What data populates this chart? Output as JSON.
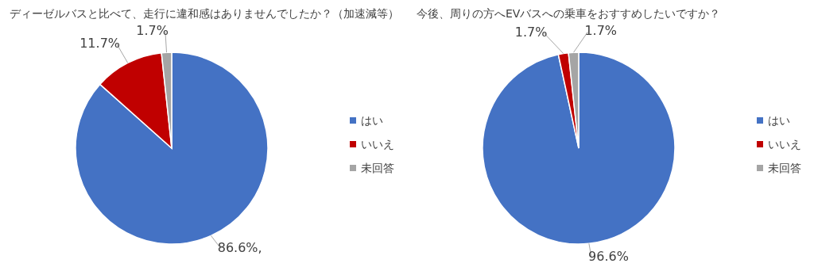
{
  "chart_data": [
    {
      "type": "pie",
      "title": "ディーゼルバスと比べて、走行に違和感はありませんでしたか？（加速減等）",
      "categories": [
        "はい",
        "いいえ",
        "未回答"
      ],
      "values": [
        86.6,
        11.7,
        1.7
      ],
      "colors": [
        "#4472c4",
        "#c00000",
        "#a5a5a5"
      ],
      "value_labels": [
        "86.6%,",
        "11.7%",
        "1.7%"
      ],
      "legend": "right"
    },
    {
      "type": "pie",
      "title": "今後、周りの方へEVバスへの乗車をおすすめしたいですか？",
      "categories": [
        "はい",
        "いいえ",
        "未回答"
      ],
      "values": [
        96.6,
        1.7,
        1.7
      ],
      "colors": [
        "#4472c4",
        "#c00000",
        "#a5a5a5"
      ],
      "value_labels": [
        "96.6%",
        "1.7%",
        "1.7%"
      ],
      "legend": "right"
    }
  ]
}
